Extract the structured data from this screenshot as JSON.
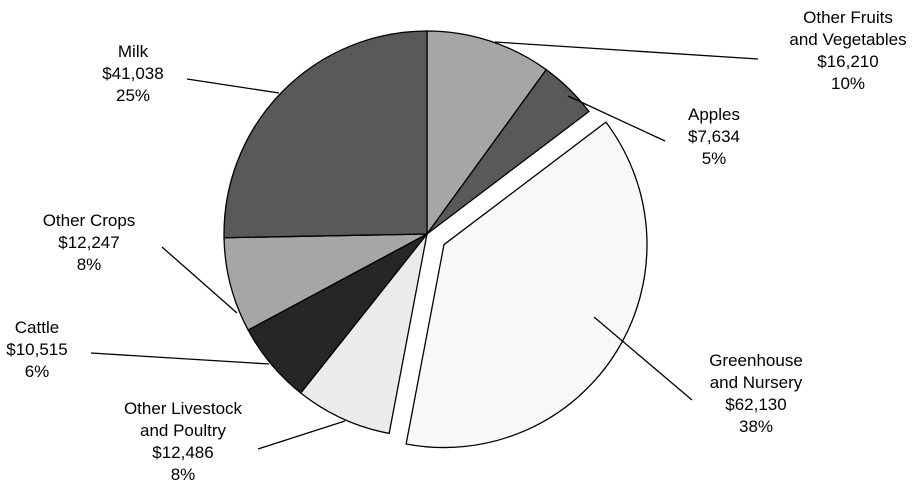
{
  "chart_data": {
    "type": "pie",
    "title": "",
    "slices": [
      {
        "name": "Other Fruits and Vegetables",
        "label_lines": [
          "Other Fruits",
          "and Vegetables"
        ],
        "value_text": "$16,210",
        "percent_text": "10%",
        "value": 16210,
        "color": "#a6a6a6",
        "exploded": false
      },
      {
        "name": "Apples",
        "label_lines": [
          "Apples"
        ],
        "value_text": "$7,634",
        "percent_text": "5%",
        "value": 7634,
        "color": "#595959",
        "exploded": false
      },
      {
        "name": "Greenhouse and Nursery",
        "label_lines": [
          "Greenhouse",
          "and Nursery"
        ],
        "value_text": "$62,130",
        "percent_text": "38%",
        "value": 62130,
        "color": "#f8f8f8",
        "exploded": true
      },
      {
        "name": "Other Livestock and Poultry",
        "label_lines": [
          "Other Livestock",
          "and Poultry"
        ],
        "value_text": "$12,486",
        "percent_text": "8%",
        "value": 12486,
        "color": "#ebebeb",
        "exploded": false
      },
      {
        "name": "Cattle",
        "label_lines": [
          "Cattle"
        ],
        "value_text": "$10,515",
        "percent_text": "6%",
        "value": 10515,
        "color": "#262626",
        "exploded": false
      },
      {
        "name": "Other Crops",
        "label_lines": [
          "Other Crops"
        ],
        "value_text": "$12,247",
        "percent_text": "8%",
        "value": 12247,
        "color": "#a6a6a6",
        "exploded": false
      },
      {
        "name": "Milk",
        "label_lines": [
          "Milk"
        ],
        "value_text": "$41,038",
        "percent_text": "25%",
        "value": 41038,
        "color": "#595959",
        "exploded": false
      }
    ],
    "start": "top",
    "direction": "clockwise",
    "legend": "none"
  }
}
